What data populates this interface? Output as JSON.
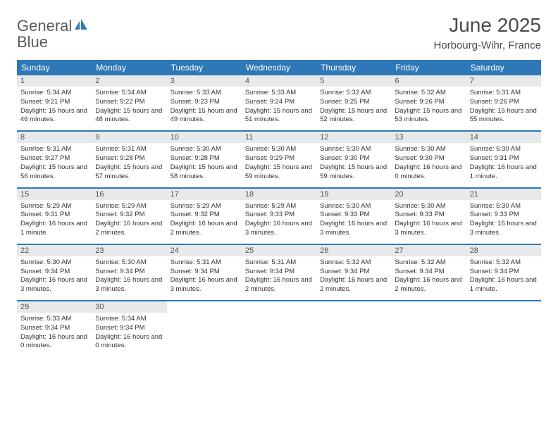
{
  "logo": {
    "word1": "General",
    "word2": "Blue"
  },
  "title": "June 2025",
  "location": "Horbourg-Wihr, France",
  "colors": {
    "header_bg": "#2f78b7",
    "header_text": "#ffffff",
    "daynum_bg": "#e8e9ea",
    "daynum_text": "#545454",
    "body_text": "#333333",
    "rule": "#2f78b7",
    "logo_gray": "#5a5a5a",
    "logo_blue": "#2f78b7"
  },
  "day_headers": [
    "Sunday",
    "Monday",
    "Tuesday",
    "Wednesday",
    "Thursday",
    "Friday",
    "Saturday"
  ],
  "weeks": [
    [
      {
        "n": "1",
        "sr": "5:34 AM",
        "ss": "9:21 PM",
        "dl": "15 hours and 46 minutes."
      },
      {
        "n": "2",
        "sr": "5:34 AM",
        "ss": "9:22 PM",
        "dl": "15 hours and 48 minutes."
      },
      {
        "n": "3",
        "sr": "5:33 AM",
        "ss": "9:23 PM",
        "dl": "15 hours and 49 minutes."
      },
      {
        "n": "4",
        "sr": "5:33 AM",
        "ss": "9:24 PM",
        "dl": "15 hours and 51 minutes."
      },
      {
        "n": "5",
        "sr": "5:32 AM",
        "ss": "9:25 PM",
        "dl": "15 hours and 52 minutes."
      },
      {
        "n": "6",
        "sr": "5:32 AM",
        "ss": "9:26 PM",
        "dl": "15 hours and 53 minutes."
      },
      {
        "n": "7",
        "sr": "5:31 AM",
        "ss": "9:26 PM",
        "dl": "15 hours and 55 minutes."
      }
    ],
    [
      {
        "n": "8",
        "sr": "5:31 AM",
        "ss": "9:27 PM",
        "dl": "15 hours and 56 minutes."
      },
      {
        "n": "9",
        "sr": "5:31 AM",
        "ss": "9:28 PM",
        "dl": "15 hours and 57 minutes."
      },
      {
        "n": "10",
        "sr": "5:30 AM",
        "ss": "9:28 PM",
        "dl": "15 hours and 58 minutes."
      },
      {
        "n": "11",
        "sr": "5:30 AM",
        "ss": "9:29 PM",
        "dl": "15 hours and 59 minutes."
      },
      {
        "n": "12",
        "sr": "5:30 AM",
        "ss": "9:30 PM",
        "dl": "15 hours and 59 minutes."
      },
      {
        "n": "13",
        "sr": "5:30 AM",
        "ss": "9:30 PM",
        "dl": "16 hours and 0 minutes."
      },
      {
        "n": "14",
        "sr": "5:30 AM",
        "ss": "9:31 PM",
        "dl": "16 hours and 1 minute."
      }
    ],
    [
      {
        "n": "15",
        "sr": "5:29 AM",
        "ss": "9:31 PM",
        "dl": "16 hours and 1 minute."
      },
      {
        "n": "16",
        "sr": "5:29 AM",
        "ss": "9:32 PM",
        "dl": "16 hours and 2 minutes."
      },
      {
        "n": "17",
        "sr": "5:29 AM",
        "ss": "9:32 PM",
        "dl": "16 hours and 2 minutes."
      },
      {
        "n": "18",
        "sr": "5:29 AM",
        "ss": "9:33 PM",
        "dl": "16 hours and 3 minutes."
      },
      {
        "n": "19",
        "sr": "5:30 AM",
        "ss": "9:33 PM",
        "dl": "16 hours and 3 minutes."
      },
      {
        "n": "20",
        "sr": "5:30 AM",
        "ss": "9:33 PM",
        "dl": "16 hours and 3 minutes."
      },
      {
        "n": "21",
        "sr": "5:30 AM",
        "ss": "9:33 PM",
        "dl": "16 hours and 3 minutes."
      }
    ],
    [
      {
        "n": "22",
        "sr": "5:30 AM",
        "ss": "9:34 PM",
        "dl": "16 hours and 3 minutes."
      },
      {
        "n": "23",
        "sr": "5:30 AM",
        "ss": "9:34 PM",
        "dl": "16 hours and 3 minutes."
      },
      {
        "n": "24",
        "sr": "5:31 AM",
        "ss": "9:34 PM",
        "dl": "16 hours and 3 minutes."
      },
      {
        "n": "25",
        "sr": "5:31 AM",
        "ss": "9:34 PM",
        "dl": "16 hours and 2 minutes."
      },
      {
        "n": "26",
        "sr": "5:32 AM",
        "ss": "9:34 PM",
        "dl": "16 hours and 2 minutes."
      },
      {
        "n": "27",
        "sr": "5:32 AM",
        "ss": "9:34 PM",
        "dl": "16 hours and 2 minutes."
      },
      {
        "n": "28",
        "sr": "5:32 AM",
        "ss": "9:34 PM",
        "dl": "16 hours and 1 minute."
      }
    ],
    [
      {
        "n": "29",
        "sr": "5:33 AM",
        "ss": "9:34 PM",
        "dl": "16 hours and 0 minutes."
      },
      {
        "n": "30",
        "sr": "5:34 AM",
        "ss": "9:34 PM",
        "dl": "16 hours and 0 minutes."
      },
      null,
      null,
      null,
      null,
      null
    ]
  ],
  "labels": {
    "sunrise": "Sunrise:",
    "sunset": "Sunset:",
    "daylight": "Daylight:"
  }
}
